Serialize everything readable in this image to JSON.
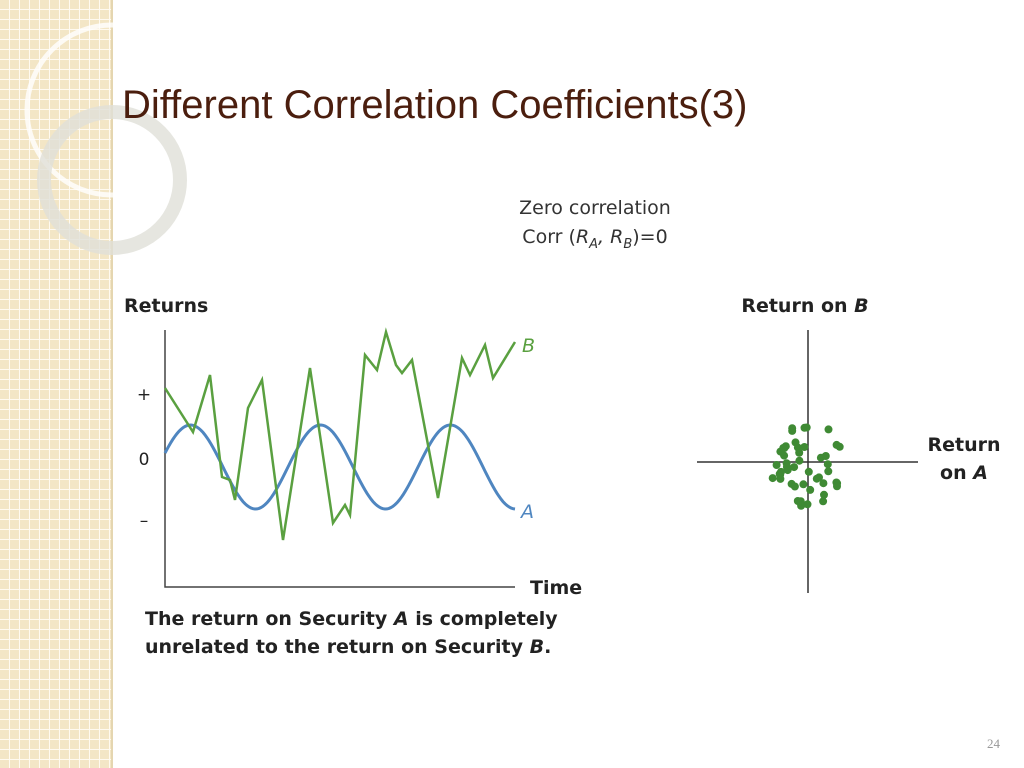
{
  "title": "Different Correlation Coefficients(3)",
  "header": {
    "line1": "Zero correlation",
    "line2": [
      "Corr (",
      "R",
      "A",
      ", ",
      "R",
      "B",
      ")=0"
    ]
  },
  "left_chart": {
    "y_label": "Returns",
    "y_marks": [
      "+",
      "0",
      "–"
    ],
    "x_label": "Time",
    "series_labels": [
      "B",
      "A"
    ],
    "caption": {
      "line1": [
        "The return on Security ",
        "A",
        " is completely"
      ],
      "line2": [
        "unrelated to the return on Security ",
        "B",
        "."
      ]
    }
  },
  "right_chart": {
    "y_label": [
      "Return on ",
      "B"
    ],
    "x_label": [
      "Return",
      "on ",
      "A"
    ]
  },
  "page_number": "24"
}
